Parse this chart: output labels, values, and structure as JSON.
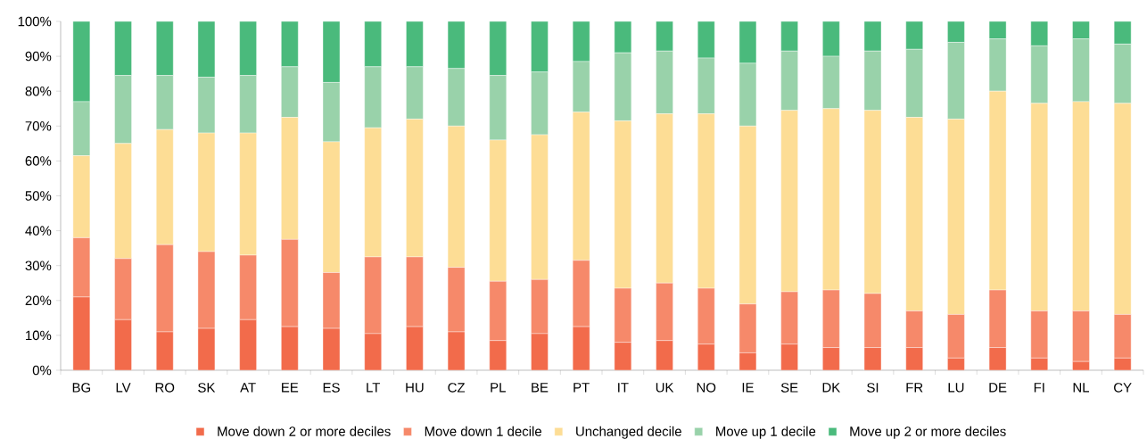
{
  "chart_data": {
    "type": "bar",
    "stacked": true,
    "legend": "bottom",
    "grid": false,
    "categories": [
      "BG",
      "LV",
      "RO",
      "SK",
      "AT",
      "EE",
      "ES",
      "LT",
      "HU",
      "CZ",
      "PL",
      "BE",
      "PT",
      "IT",
      "UK",
      "NO",
      "IE",
      "SE",
      "DK",
      "SI",
      "FR",
      "LU",
      "DE",
      "FI",
      "NL",
      "CY"
    ],
    "ylim": [
      0,
      100
    ],
    "yticks": [
      {
        "value": 0,
        "label": "0%"
      },
      {
        "value": 10,
        "label": "10%"
      },
      {
        "value": 20,
        "label": "20%"
      },
      {
        "value": 30,
        "label": "30%"
      },
      {
        "value": 40,
        "label": "40%"
      },
      {
        "value": 50,
        "label": "50%"
      },
      {
        "value": 60,
        "label": "60%"
      },
      {
        "value": 70,
        "label": "70%"
      },
      {
        "value": 80,
        "label": "80%"
      },
      {
        "value": 90,
        "label": "90%"
      },
      {
        "value": 100,
        "label": "100%"
      }
    ],
    "series": [
      {
        "name": "Move down 2 or more deciles",
        "color": "#f26b4b",
        "values": [
          21,
          14.5,
          11,
          12,
          14.5,
          12.5,
          12,
          10.5,
          12.5,
          11,
          8.5,
          10.5,
          12.5,
          8,
          8.5,
          7.5,
          5,
          7.5,
          6.5,
          6.5,
          6.5,
          3.5,
          6.5,
          3.5,
          2.5,
          3.5
        ]
      },
      {
        "name": "Move down 1 decile",
        "color": "#f6896a",
        "values": [
          17,
          17.5,
          25,
          22,
          18.5,
          25,
          16,
          22,
          20,
          18.5,
          17,
          15.5,
          19,
          15.5,
          16.5,
          16,
          14,
          15,
          16.5,
          15.5,
          10.5,
          12.5,
          16.5,
          13.5,
          14.5,
          12.5
        ]
      },
      {
        "name": "Unchanged decile",
        "color": "#fddd95",
        "values": [
          23.5,
          33,
          33,
          34,
          35,
          35,
          37.5,
          37,
          39.5,
          40.5,
          40.5,
          41.5,
          42.5,
          48,
          48.5,
          50,
          51,
          52,
          52,
          52.5,
          55.5,
          56,
          57,
          59.5,
          60,
          60.5
        ]
      },
      {
        "name": "Move up 1 decile",
        "color": "#99d2aa",
        "values": [
          15.5,
          19.5,
          15.5,
          16,
          16.5,
          14.5,
          17,
          17.5,
          15,
          16.5,
          18.5,
          18,
          14.5,
          19.5,
          18,
          16,
          18,
          17,
          15,
          17,
          19.5,
          22,
          15,
          16.5,
          18,
          17
        ]
      },
      {
        "name": "Move up 2 or more deciles",
        "color": "#4aba7c",
        "values": [
          23,
          15.5,
          15.5,
          16,
          15.5,
          13,
          17.5,
          13,
          13,
          13.5,
          15.5,
          14.5,
          11.5,
          9,
          8.5,
          10.5,
          12,
          8.5,
          10,
          8.5,
          8,
          6,
          5,
          7,
          5,
          6.5
        ]
      }
    ]
  }
}
